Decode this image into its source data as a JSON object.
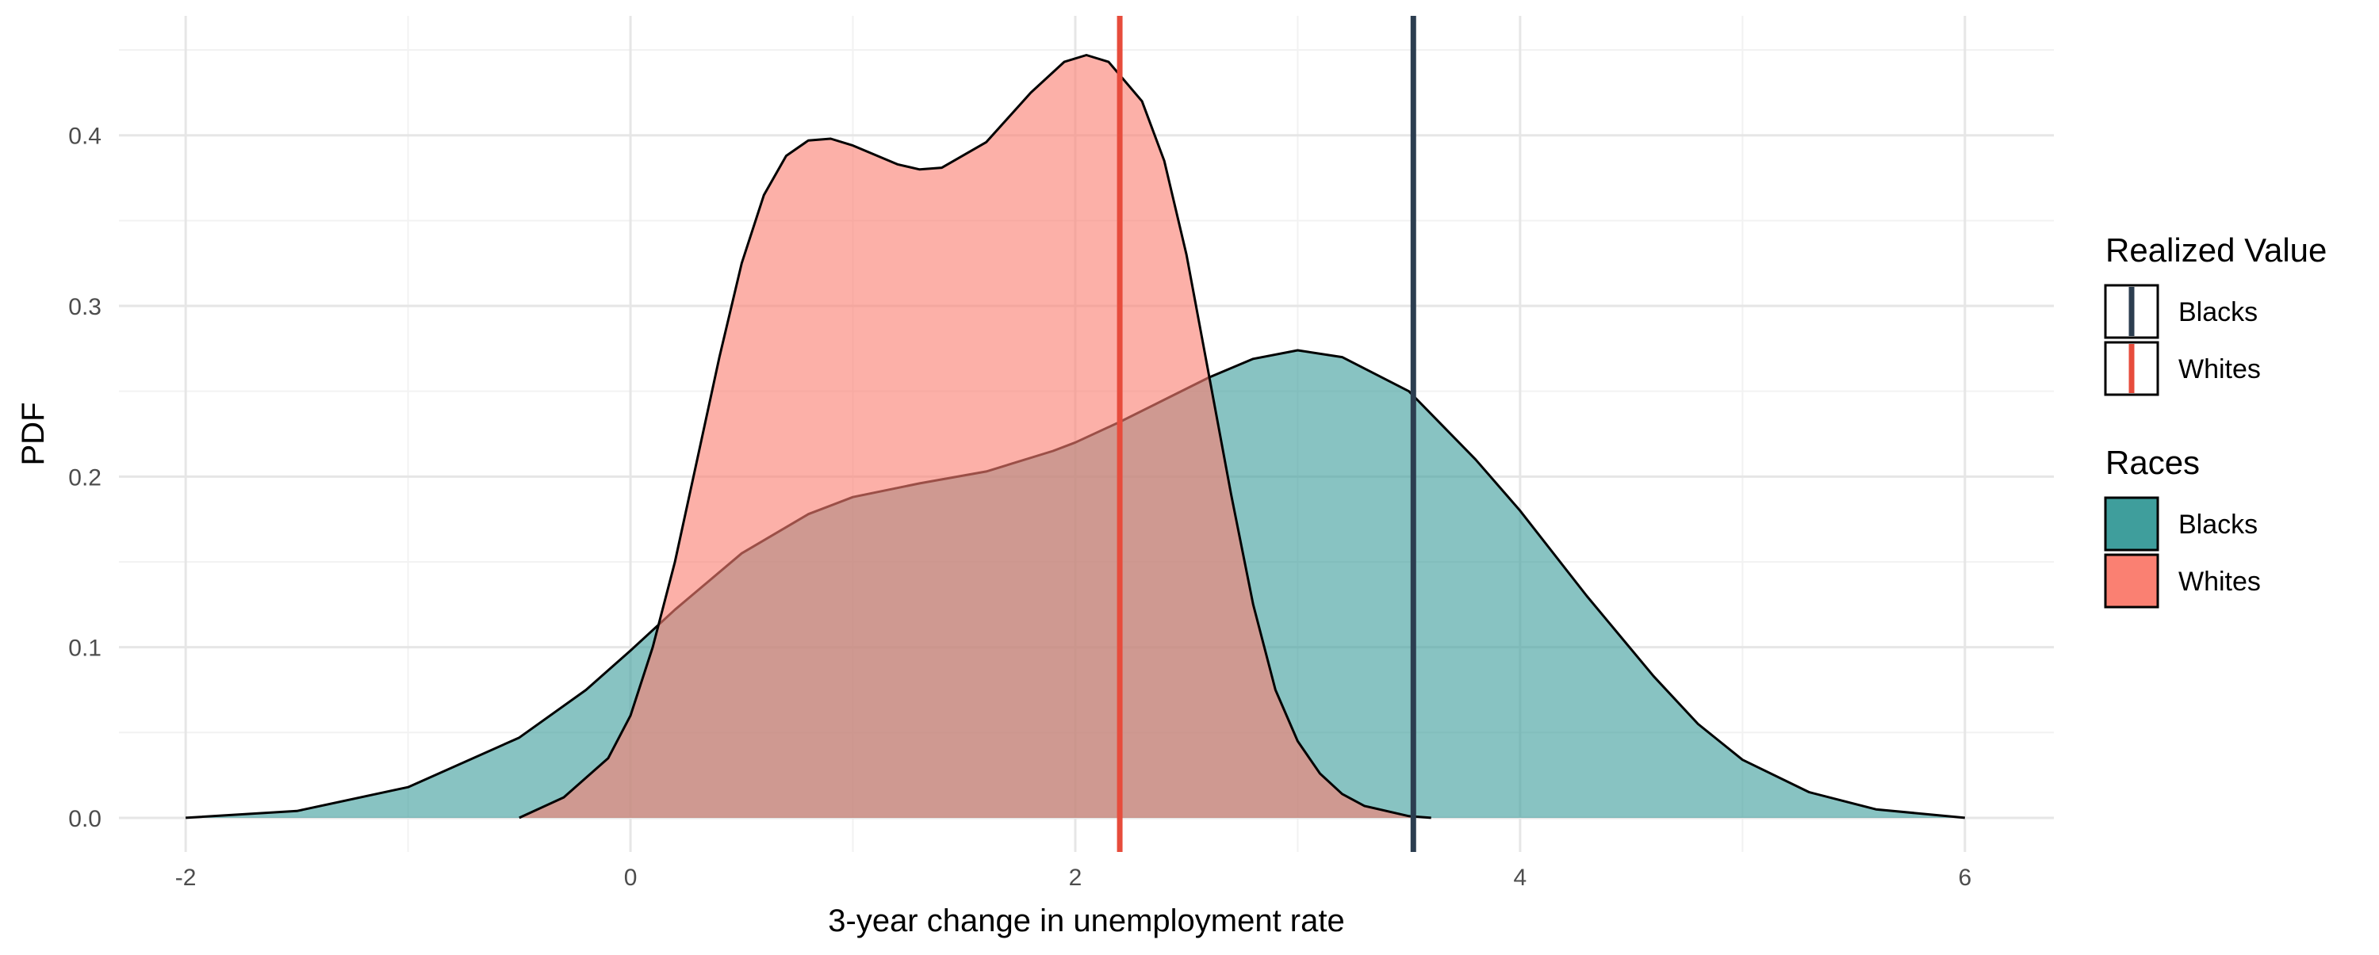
{
  "chart_data": {
    "type": "area",
    "xlabel": "3-year change in unemployment rate",
    "ylabel": "PDF",
    "xlim": [
      -2.3,
      6.4
    ],
    "ylim": [
      -0.02,
      0.47
    ],
    "x_ticks": [
      -2,
      0,
      2,
      4,
      6
    ],
    "x_tick_labels": [
      "-2",
      "0",
      "2",
      "4",
      "6"
    ],
    "y_ticks": [
      0.0,
      0.1,
      0.2,
      0.3,
      0.4
    ],
    "y_tick_labels": [
      "0.0",
      "0.1",
      "0.2",
      "0.3",
      "0.4"
    ],
    "grid": true,
    "series": [
      {
        "name": "Blacks",
        "color": "#3f9e9c",
        "points": [
          [
            -2.0,
            0.0
          ],
          [
            -1.5,
            0.004
          ],
          [
            -1.0,
            0.018
          ],
          [
            -0.5,
            0.047
          ],
          [
            -0.2,
            0.075
          ],
          [
            0.0,
            0.098
          ],
          [
            0.2,
            0.122
          ],
          [
            0.5,
            0.155
          ],
          [
            0.8,
            0.178
          ],
          [
            1.0,
            0.188
          ],
          [
            1.3,
            0.196
          ],
          [
            1.6,
            0.203
          ],
          [
            1.9,
            0.215
          ],
          [
            2.0,
            0.22
          ],
          [
            2.2,
            0.232
          ],
          [
            2.4,
            0.245
          ],
          [
            2.6,
            0.258
          ],
          [
            2.8,
            0.269
          ],
          [
            3.0,
            0.274
          ],
          [
            3.2,
            0.27
          ],
          [
            3.5,
            0.25
          ],
          [
            3.8,
            0.21
          ],
          [
            4.0,
            0.18
          ],
          [
            4.3,
            0.13
          ],
          [
            4.6,
            0.083
          ],
          [
            4.8,
            0.055
          ],
          [
            5.0,
            0.034
          ],
          [
            5.3,
            0.015
          ],
          [
            5.6,
            0.005
          ],
          [
            6.0,
            0.0
          ]
        ]
      },
      {
        "name": "Whites",
        "color": "#fa8072",
        "points": [
          [
            -0.5,
            0.0
          ],
          [
            -0.3,
            0.012
          ],
          [
            -0.1,
            0.035
          ],
          [
            0.0,
            0.06
          ],
          [
            0.1,
            0.1
          ],
          [
            0.2,
            0.15
          ],
          [
            0.3,
            0.21
          ],
          [
            0.4,
            0.27
          ],
          [
            0.5,
            0.325
          ],
          [
            0.6,
            0.365
          ],
          [
            0.7,
            0.388
          ],
          [
            0.8,
            0.397
          ],
          [
            0.9,
            0.398
          ],
          [
            1.0,
            0.394
          ],
          [
            1.2,
            0.383
          ],
          [
            1.3,
            0.38
          ],
          [
            1.4,
            0.381
          ],
          [
            1.6,
            0.396
          ],
          [
            1.8,
            0.425
          ],
          [
            1.95,
            0.443
          ],
          [
            2.05,
            0.447
          ],
          [
            2.15,
            0.443
          ],
          [
            2.3,
            0.42
          ],
          [
            2.4,
            0.385
          ],
          [
            2.5,
            0.33
          ],
          [
            2.6,
            0.26
          ],
          [
            2.7,
            0.19
          ],
          [
            2.8,
            0.125
          ],
          [
            2.9,
            0.075
          ],
          [
            3.0,
            0.045
          ],
          [
            3.1,
            0.026
          ],
          [
            3.2,
            0.014
          ],
          [
            3.3,
            0.007
          ],
          [
            3.5,
            0.001
          ],
          [
            3.6,
            0.0
          ]
        ]
      }
    ],
    "realized_values": [
      {
        "name": "Blacks",
        "x": 3.52,
        "color": "#2c3e50"
      },
      {
        "name": "Whites",
        "x": 2.2,
        "color": "#e74c3c"
      }
    ],
    "legends": [
      {
        "title": "Realized Value",
        "kind": "line",
        "items": [
          "Blacks",
          "Whites"
        ]
      },
      {
        "title": "Races",
        "kind": "fill",
        "items": [
          "Blacks",
          "Whites"
        ]
      }
    ],
    "legend_position": "right"
  }
}
